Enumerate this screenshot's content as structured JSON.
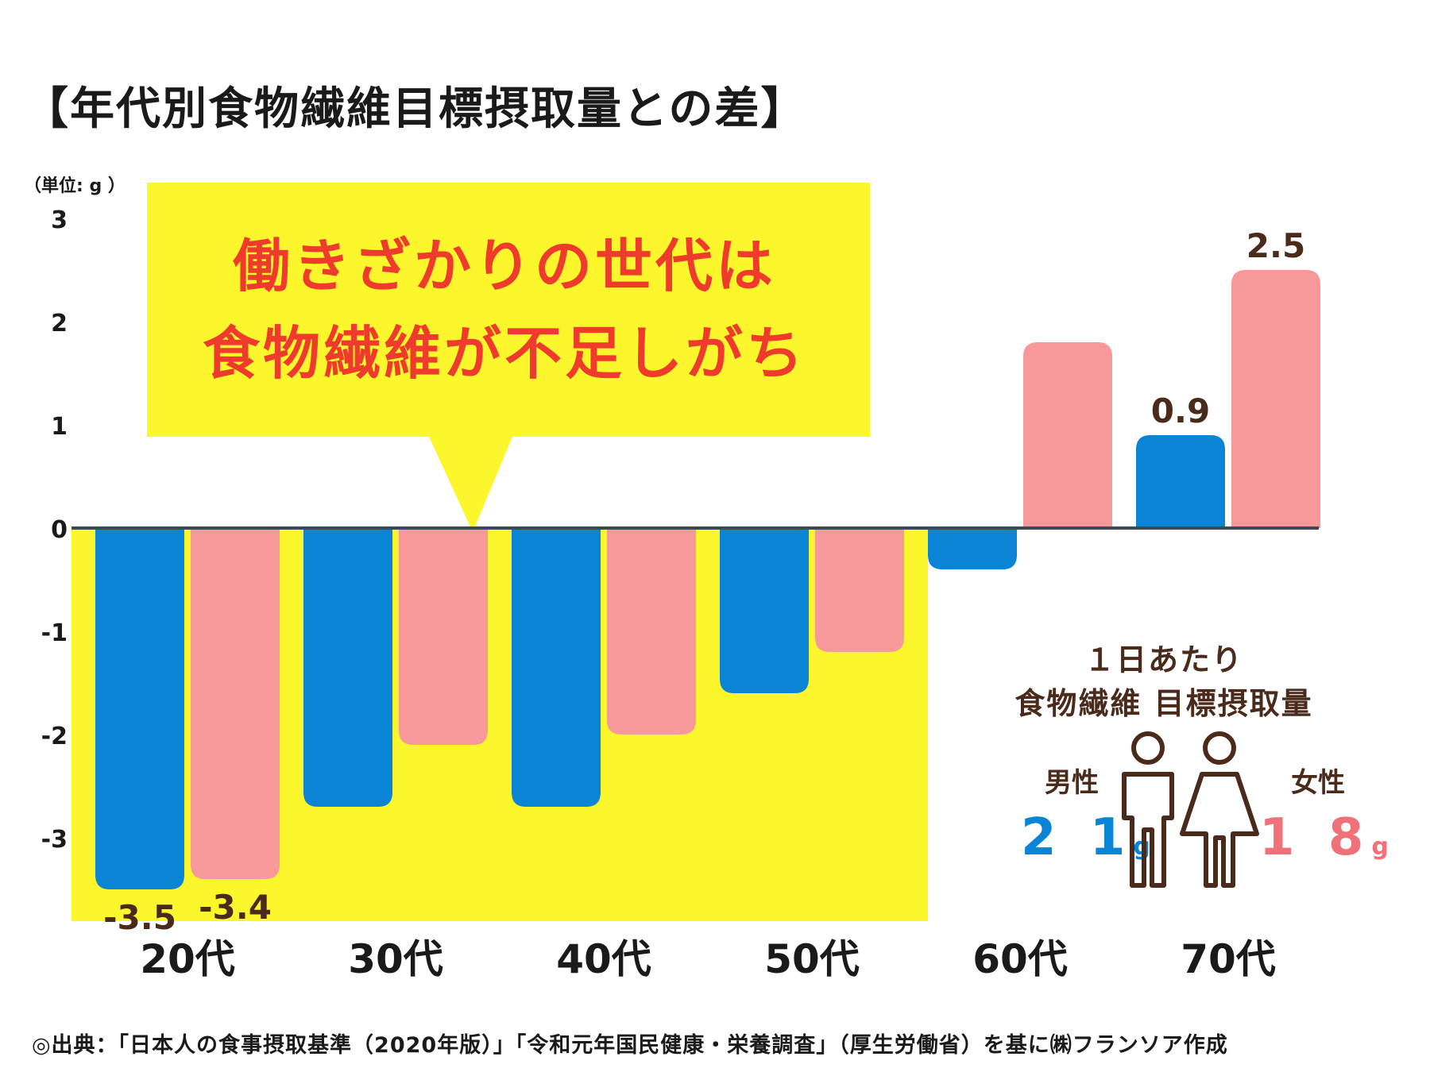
{
  "title": "【年代別食物繊維目標摂取量との差】",
  "unit_label": "（単位: g ）",
  "callout": {
    "line1": "働きざかりの世代は",
    "line2": "食物繊維が不足しがち"
  },
  "info_box": {
    "heading1": "１日あたり",
    "heading2": "食物繊維 目標摂取量",
    "male_label": "男性",
    "male_value": "2 1",
    "male_unit": "g",
    "female_label": "女性",
    "female_value": "1 8",
    "female_unit": "g"
  },
  "source": "◎出典：「日本人の食事摂取基準（2020年版）」「令和元年国民健康・栄養調査」（厚生労働省）を基に㈱フランソア作成",
  "colors": {
    "male": "#0a84d4",
    "female": "#f7999a",
    "highlight": "#fcf72c",
    "callout_text": "#ee3b2b",
    "axis": "#3a4a55",
    "label": "#4a2a1a"
  },
  "chart_data": {
    "type": "bar",
    "title": "【年代別食物繊維目標摂取量との差】",
    "ylabel": "（単位: g ）",
    "ylim": [
      -3.5,
      3
    ],
    "yticks": [
      "3",
      "2",
      "1",
      "0",
      "-1",
      "-2",
      "-3"
    ],
    "ytick_values": [
      3,
      2,
      1,
      0,
      -1,
      -2,
      -3
    ],
    "categories": [
      "20代",
      "30代",
      "40代",
      "50代",
      "60代",
      "70代"
    ],
    "series": [
      {
        "name": "男性",
        "values": [
          -3.5,
          -2.7,
          -2.7,
          -1.6,
          -0.4,
          0.9
        ]
      },
      {
        "name": "女性",
        "values": [
          -3.4,
          -2.1,
          -2.0,
          -1.2,
          1.8,
          2.5
        ]
      }
    ],
    "data_labels": [
      {
        "series": 0,
        "index": 0,
        "text": "-3.5"
      },
      {
        "series": 1,
        "index": 0,
        "text": "-3.4"
      },
      {
        "series": 0,
        "index": 5,
        "text": "0.9"
      },
      {
        "series": 1,
        "index": 5,
        "text": "2.5"
      }
    ],
    "highlight_categories": [
      "20代",
      "30代",
      "40代",
      "50代"
    ]
  }
}
